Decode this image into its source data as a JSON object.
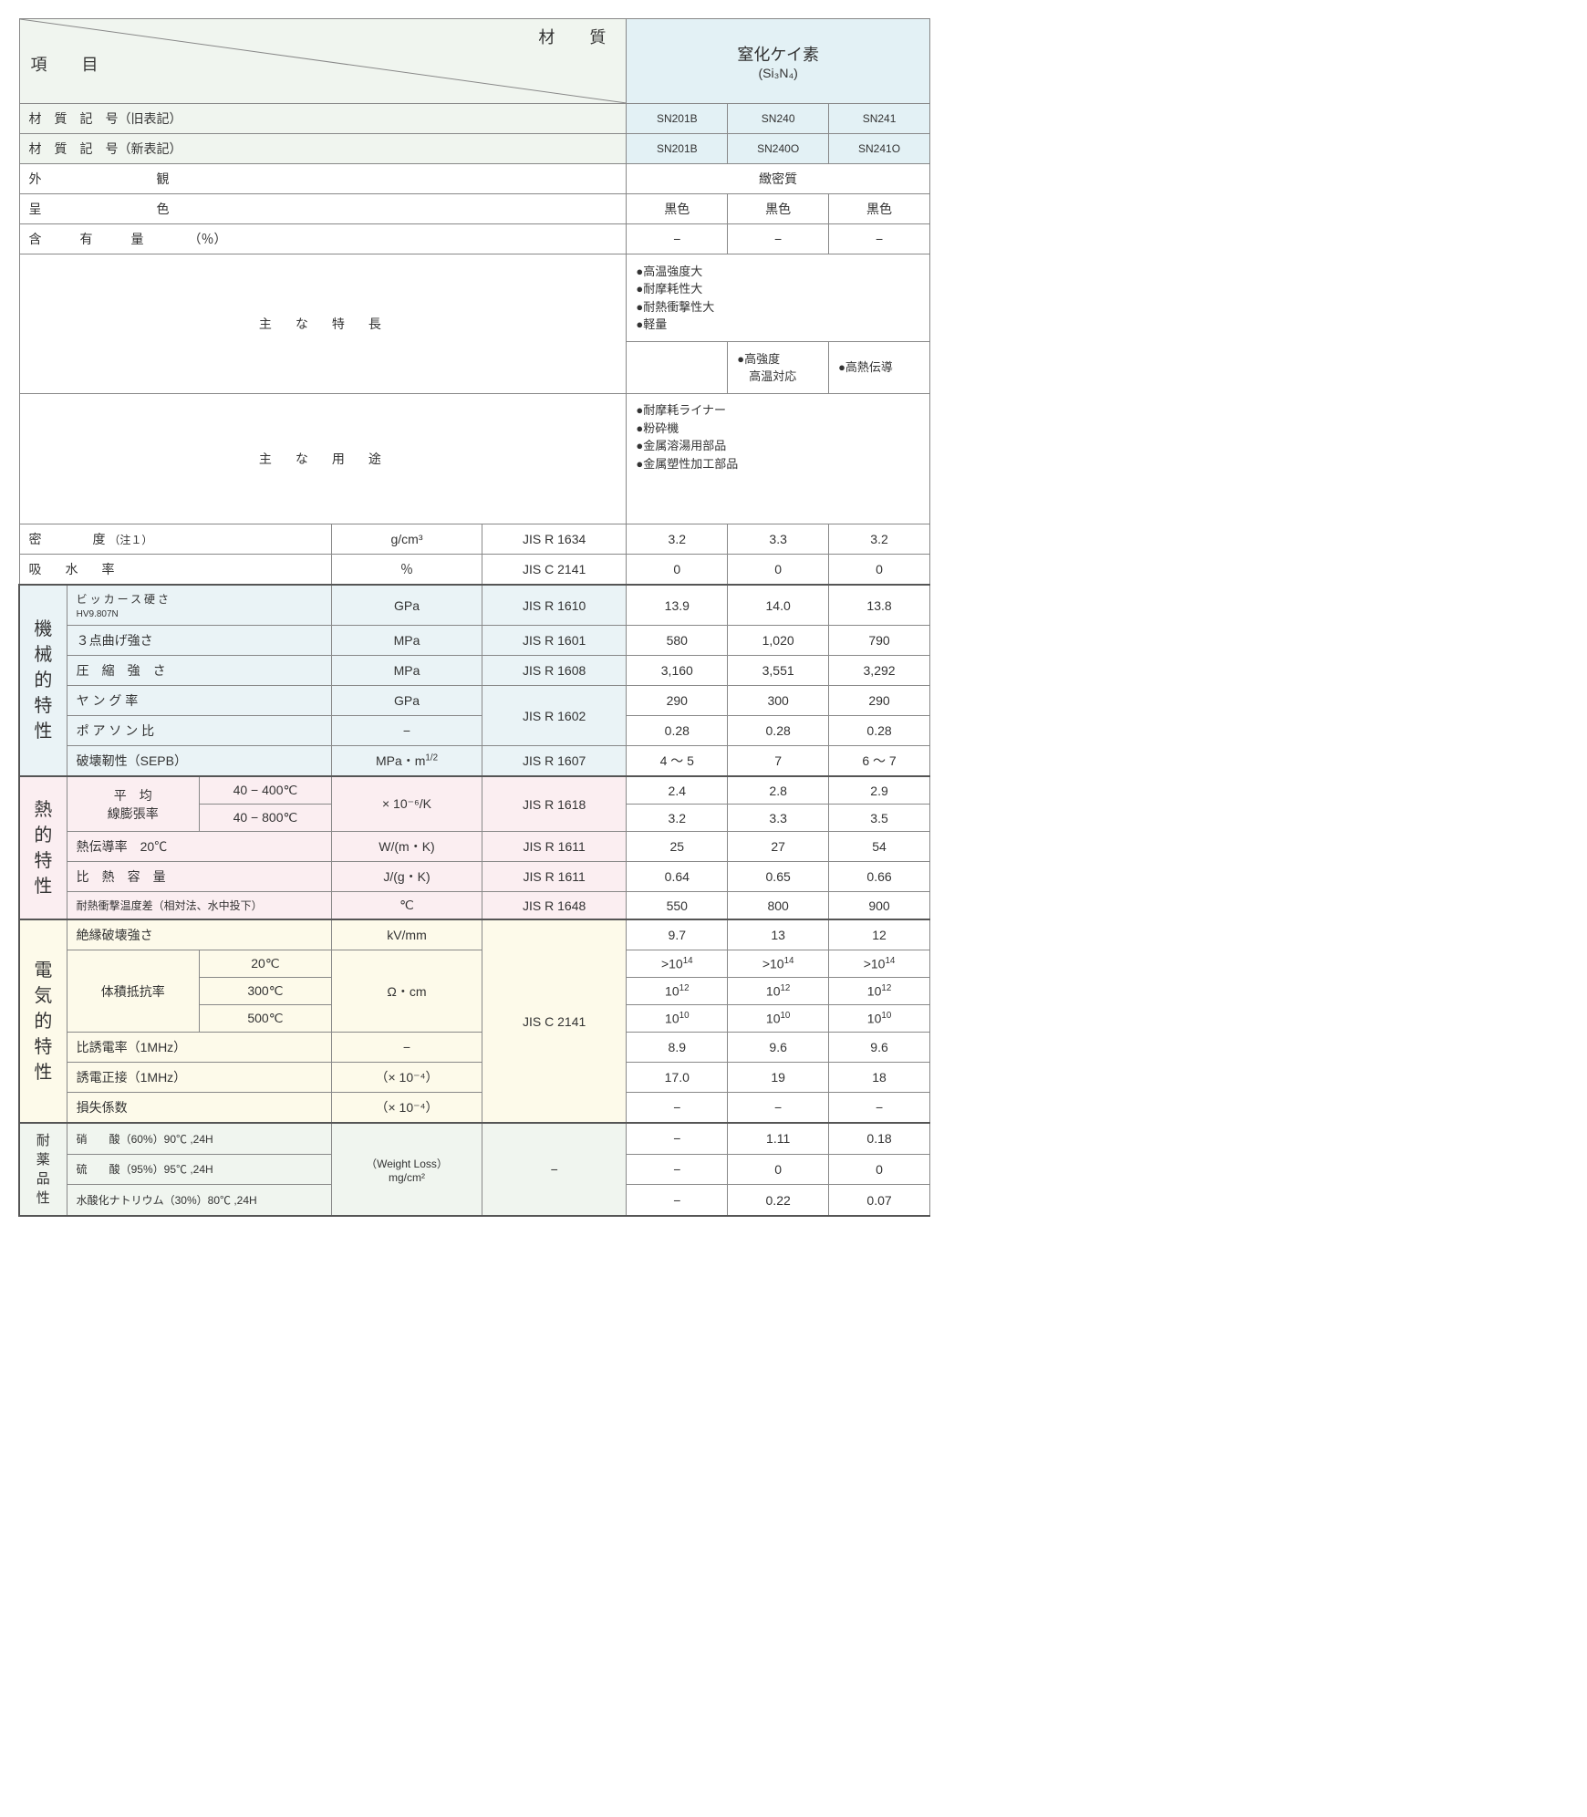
{
  "header": {
    "item_label": "項　目",
    "material_label": "材　質",
    "material_name": "窒化ケイ素",
    "material_formula": "(Si₃N₄)"
  },
  "code_old_label": "材　質　記　号（旧表記）",
  "code_new_label": "材　質　記　号（新表記）",
  "codes_old": [
    "SN201B",
    "SN240",
    "SN241"
  ],
  "codes_new": [
    "SN201B",
    "SN240O",
    "SN241O"
  ],
  "appearance_label": "外　　　　　　観",
  "appearance_value": "緻密質",
  "color_label": "呈　　　　　　色",
  "color_values": [
    "黒色",
    "黒色",
    "黒色"
  ],
  "content_label": "含　　　有　　　量　　　　（％）",
  "content_values": [
    "−",
    "−",
    "−"
  ],
  "features_label": "主　な　特　長",
  "features_common": "●高温強度大\n●耐摩耗性大\n●耐熱衝撃性大\n●軽量",
  "features_cols": [
    "",
    "●高強度\n　高温対応",
    "●高熱伝導"
  ],
  "uses_label": "主　な　用　途",
  "uses_text": "●耐摩耗ライナー\n●粉砕機\n●金属溶湯用部品\n●金属塑性加工部品",
  "density": {
    "label": "密　　　　度",
    "note": "（注１）",
    "unit": "g/cm³",
    "std": "JIS R 1634",
    "vals": [
      "3.2",
      "3.3",
      "3.2"
    ]
  },
  "water": {
    "label": "吸　水　率",
    "unit": "％",
    "std": "JIS C 2141",
    "vals": [
      "0",
      "0",
      "0"
    ]
  },
  "mech_label": "機械的特性",
  "mech": {
    "vickers": {
      "label": "ビッカース硬さ",
      "note": "HV9.807N",
      "unit": "GPa",
      "std": "JIS R 1610",
      "vals": [
        "13.9",
        "14.0",
        "13.8"
      ]
    },
    "bend": {
      "label": "３点曲げ強さ",
      "unit": "MPa",
      "std": "JIS R 1601",
      "vals": [
        "580",
        "1,020",
        "790"
      ]
    },
    "comp": {
      "label": "圧　縮　強　さ",
      "unit": "MPa",
      "std": "JIS R 1608",
      "vals": [
        "3,160",
        "3,551",
        "3,292"
      ]
    },
    "young": {
      "label": "ヤ ン グ 率",
      "unit": "GPa",
      "std": "JIS R 1602",
      "vals": [
        "290",
        "300",
        "290"
      ]
    },
    "poisson": {
      "label": "ポ ア ソ ン 比",
      "unit": "−",
      "vals": [
        "0.28",
        "0.28",
        "0.28"
      ]
    },
    "fracture": {
      "label": "破壊靭性（SEPB）",
      "unit": "MPa・m<sup>1/2</sup>",
      "std": "JIS R 1607",
      "vals": [
        "4 〜 5",
        "7",
        "6 〜 7"
      ]
    }
  },
  "thermal_label": "熱的特性",
  "thermal": {
    "cte_label": "平　均\n線膨張率",
    "cte_range1": "40 − 400℃",
    "cte_range2": "40 − 800℃",
    "cte_unit": "× 10⁻⁶/K",
    "cte_std": "JIS R 1618",
    "cte_vals1": [
      "2.4",
      "2.8",
      "2.9"
    ],
    "cte_vals2": [
      "3.2",
      "3.3",
      "3.5"
    ],
    "cond": {
      "label": "熱伝導率　20℃",
      "unit": "W/(m・K)",
      "std": "JIS R 1611",
      "vals": [
        "25",
        "27",
        "54"
      ]
    },
    "heat": {
      "label": "比　熱　容　量",
      "unit": "J/(g・K)",
      "std": "JIS R 1611",
      "vals": [
        "0.64",
        "0.65",
        "0.66"
      ]
    },
    "shock": {
      "label": "耐熱衝撃温度差（相対法、水中投下）",
      "unit": "℃",
      "std": "JIS R 1648",
      "vals": [
        "550",
        "800",
        "900"
      ]
    }
  },
  "elec_label": "電気的特性",
  "elec": {
    "dielec": {
      "label": "絶縁破壊強さ",
      "unit": "kV/mm",
      "vals": [
        "9.7",
        "13",
        "12"
      ]
    },
    "res_label": "体積抵抗率",
    "res_t1": "20℃",
    "res_v1": [
      ">10<sup>14</sup>",
      ">10<sup>14</sup>",
      ">10<sup>14</sup>"
    ],
    "res_t2": "300℃",
    "res_v2": [
      "10<sup>12</sup>",
      "10<sup>12</sup>",
      "10<sup>12</sup>"
    ],
    "res_t3": "500℃",
    "res_v3": [
      "10<sup>10</sup>",
      "10<sup>10</sup>",
      "10<sup>10</sup>"
    ],
    "res_unit": "Ω・cm",
    "std": "JIS C 2141",
    "perm": {
      "label": "比誘電率（1MHz）",
      "unit": "−",
      "vals": [
        "8.9",
        "9.6",
        "9.6"
      ]
    },
    "tan": {
      "label": "誘電正接（1MHz）",
      "unit": "（× 10⁻⁴）",
      "vals": [
        "17.0",
        "19",
        "18"
      ]
    },
    "loss": {
      "label": "損失係数",
      "unit": "（× 10⁻⁴）",
      "vals": [
        "−",
        "−",
        "−"
      ]
    }
  },
  "chem_label": "耐薬品性",
  "chem": {
    "unit": "（Weight Loss）\nmg/cm²",
    "std": "−",
    "nitric": {
      "label": "硝　　酸（60%）90℃ ,24H",
      "vals": [
        "−",
        "1.11",
        "0.18"
      ]
    },
    "sulf": {
      "label": "硫　　酸（95%）95℃ ,24H",
      "vals": [
        "−",
        "0",
        "0"
      ]
    },
    "naoh": {
      "label": "水酸化ナトリウム（30%）80℃ ,24H",
      "vals": [
        "−",
        "0.22",
        "0.07"
      ]
    }
  },
  "colors": {
    "green": "#f0f5ef",
    "blue_header": "#e3f1f5",
    "light_blue": "#eaf3f6",
    "pink": "#fbeef1",
    "cream": "#fdfaea",
    "border": "#888888"
  }
}
